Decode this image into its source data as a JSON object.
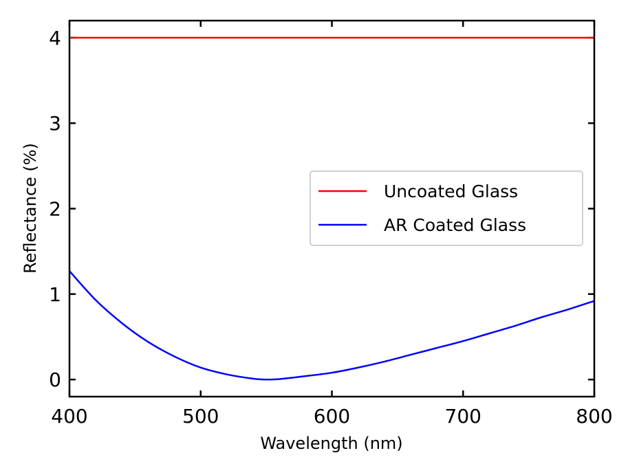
{
  "chart_data": {
    "type": "line",
    "title": "",
    "xlabel": "Wavelength (nm)",
    "ylabel": "Reflectance (%)",
    "xlim": [
      400,
      800
    ],
    "ylim": [
      -0.2,
      4.2
    ],
    "x_ticks": [
      400,
      500,
      600,
      700,
      800
    ],
    "x_tick_labels": [
      "400",
      "500",
      "600",
      "700",
      "800"
    ],
    "y_ticks": [
      0,
      1,
      2,
      3,
      4
    ],
    "y_tick_labels": [
      "0",
      "1",
      "2",
      "3",
      "4"
    ],
    "grid": false,
    "legend_position": "center-right",
    "series": [
      {
        "name": "Uncoated Glass",
        "color": "#ff0000",
        "x": [
          400,
          800
        ],
        "y": [
          4.0,
          4.0
        ]
      },
      {
        "name": "AR Coated Glass",
        "color": "#0000ff",
        "x": [
          400,
          420,
          440,
          460,
          480,
          500,
          520,
          540,
          550,
          560,
          580,
          600,
          620,
          640,
          660,
          680,
          700,
          720,
          740,
          760,
          780,
          800
        ],
        "y": [
          1.27,
          0.93,
          0.66,
          0.44,
          0.27,
          0.14,
          0.06,
          0.01,
          0.0,
          0.005,
          0.04,
          0.08,
          0.14,
          0.21,
          0.29,
          0.37,
          0.45,
          0.54,
          0.63,
          0.73,
          0.82,
          0.92
        ]
      }
    ]
  }
}
